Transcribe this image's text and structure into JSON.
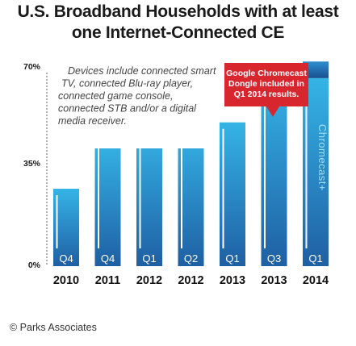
{
  "title_line1": "U.S. Broadband Households with at least",
  "title_line2": "one Internet-Connected CE",
  "note_lines": [
    "Devices include connected smart",
    "TV, connected Blu-ray player,",
    "connected game console,",
    "connected STB and/or a digital",
    "media receiver."
  ],
  "callout_lines": [
    "Google Chromecast",
    "Dongle included in",
    "Q1 2014 results."
  ],
  "footnote": "© Parks Associates",
  "colors": {
    "bar_top": "#35b4e6",
    "bar_bottom": "#1f5fa3",
    "callout": "#d8262e",
    "stacked_top": "#2e8fd0",
    "stacked_bottom": "#1a4f8f"
  },
  "chart_data": {
    "type": "bar",
    "title": "U.S. Broadband Households with at least one Internet-Connected CE",
    "ylim": [
      0,
      70
    ],
    "yticks": [
      "0%",
      "35%",
      "70%"
    ],
    "grid": false,
    "categories": [
      "Q4 2010",
      "Q4 2011",
      "Q1 2012",
      "Q2 2012",
      "Q1 2013",
      "Q3 2013",
      "Q1 2014"
    ],
    "quarters": [
      "Q4",
      "Q4",
      "Q1",
      "Q2",
      "Q1",
      "Q3",
      "Q1"
    ],
    "years": [
      "2010",
      "2011",
      "2012",
      "2012",
      "2013",
      "2013",
      "2014"
    ],
    "values": [
      28,
      45,
      50,
      50,
      52,
      68,
      74
    ],
    "stacked_segment": {
      "index": 6,
      "base": 68,
      "label": "Chromecast+"
    }
  }
}
